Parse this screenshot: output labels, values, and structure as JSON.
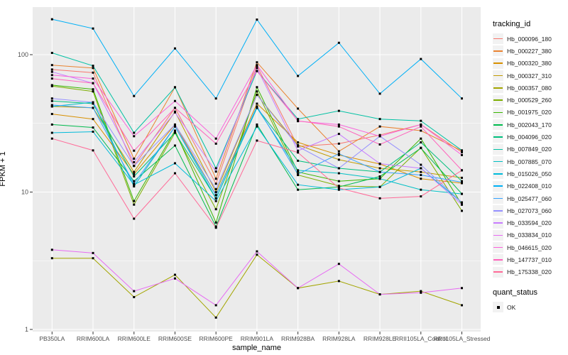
{
  "chart_data": {
    "type": "line",
    "title": "",
    "xlabel": "sample_name",
    "ylabel": "FPKM + 1",
    "y_scale": "log10",
    "y_ticks": [
      100,
      10,
      1
    ],
    "y_minor_gridlines": [
      31.6228,
      3.16228
    ],
    "ylim": [
      1,
      222
    ],
    "grid": true,
    "legend_position": "right",
    "point_marker": "black-filled-square",
    "panel_background": "#EBEBEB",
    "gridline_color": "#FFFFFF",
    "tick_label_color": "#4D4D4D",
    "categories": [
      "PB350LA",
      "RRIM600LA",
      "RRIM600LE",
      "RRIM600SE",
      "RRIM600PE",
      "RRIM901LA",
      "RRIM928BA",
      "RRIM928LA",
      "RRIM928LE",
      "RRII105LA_Control",
      "RRII105LA_Stressed"
    ],
    "series": [
      {
        "name": "Hb_000096_180",
        "color": "#F8766D",
        "values": [
          78,
          74,
          15.5,
          41,
          11.5,
          83,
          21.5,
          22.5,
          26,
          31,
          19.5
        ]
      },
      {
        "name": "Hb_000227_380",
        "color": "#EA8331",
        "values": [
          84,
          80,
          17.5,
          58,
          12.5,
          88,
          40.5,
          19.8,
          30,
          28,
          20
        ]
      },
      {
        "name": "Hb_000320_380",
        "color": "#D89000",
        "values": [
          37,
          34,
          13.5,
          31,
          9.5,
          44,
          23,
          18.6,
          16,
          12.5,
          11.6
        ]
      },
      {
        "name": "Hb_000327_310",
        "color": "#C09B00",
        "values": [
          42,
          41,
          14,
          38.5,
          10,
          51,
          22,
          17.2,
          14.9,
          14,
          12.7
        ]
      },
      {
        "name": "Hb_000357_080",
        "color": "#A3A500",
        "values": [
          3.3,
          3.3,
          1.72,
          2.5,
          1.22,
          3.5,
          2.0,
          2.25,
          1.8,
          1.9,
          1.5
        ]
      },
      {
        "name": "Hb_000529_260",
        "color": "#7CAE00",
        "values": [
          59,
          54,
          8.1,
          27,
          7.5,
          54,
          13.3,
          11.1,
          10.9,
          21,
          7.3
        ]
      },
      {
        "name": "Hb_001975_020",
        "color": "#39B600",
        "values": [
          60,
          56,
          8.6,
          28,
          6.0,
          58,
          14,
          12.0,
          12.5,
          24.5,
          8.1
        ]
      },
      {
        "name": "Hb_002043_170",
        "color": "#00BB4E",
        "values": [
          31,
          29.5,
          12,
          21.8,
          5.6,
          31,
          10.4,
          10.9,
          13,
          20.9,
          9.7
        ]
      },
      {
        "name": "Hb_004096_020",
        "color": "#00BF7D",
        "values": [
          46,
          44,
          13,
          27,
          9.0,
          41,
          16.9,
          14.9,
          14,
          23,
          12
        ]
      },
      {
        "name": "Hb_007849_020",
        "color": "#00C1A3",
        "values": [
          103,
          83,
          27,
          57.8,
          14.9,
          76,
          34,
          39,
          34,
          33,
          20.1
        ]
      },
      {
        "name": "Hb_007885_070",
        "color": "#00BFC4",
        "values": [
          42,
          45,
          11,
          30,
          9.0,
          41,
          14.4,
          13.7,
          12.5,
          10.4,
          9.7
        ]
      },
      {
        "name": "Hb_015026_050",
        "color": "#00BBDA",
        "values": [
          27,
          27.5,
          11.3,
          16.2,
          8.6,
          30,
          11.3,
          10.4,
          10.9,
          14.9,
          8.4
        ]
      },
      {
        "name": "Hb_022408_010",
        "color": "#00B0F6",
        "values": [
          181,
          155,
          50,
          111,
          48,
          180,
          70,
          122,
          52,
          93,
          48
        ]
      },
      {
        "name": "Hb_025477_060",
        "color": "#35A2FF",
        "values": [
          43,
          41,
          11.5,
          30,
          9.5,
          42,
          13.5,
          19,
          14,
          13.3,
          11.8
        ]
      },
      {
        "name": "Hb_027073_060",
        "color": "#9590FF",
        "values": [
          48,
          45,
          15.5,
          31,
          10.5,
          51,
          21.5,
          14.9,
          25.5,
          15.8,
          8.4
        ]
      },
      {
        "name": "Hb_033594_020",
        "color": "#C77CFF",
        "values": [
          75,
          62,
          16.5,
          38,
          14.1,
          80,
          20,
          26.5,
          16.1,
          14.9,
          8.1
        ]
      },
      {
        "name": "Hb_033834_010",
        "color": "#E76BF3",
        "values": [
          3.8,
          3.6,
          1.9,
          2.35,
          1.5,
          3.7,
          2.0,
          3.0,
          1.8,
          1.85,
          2.0
        ]
      },
      {
        "name": "Hb_046615_020",
        "color": "#FA62DB",
        "values": [
          71,
          67,
          25.5,
          46,
          24.5,
          84,
          32.8,
          31,
          25.5,
          31,
          18.6
        ]
      },
      {
        "name": "Hb_147737_010",
        "color": "#FF62BC",
        "values": [
          67,
          62,
          20,
          41,
          22.5,
          76,
          33,
          30,
          22.2,
          30,
          14.4
        ]
      },
      {
        "name": "Hb_175338_020",
        "color": "#FF6A98",
        "values": [
          24.5,
          20.1,
          6.4,
          13.7,
          5.5,
          23.7,
          19.4,
          10.7,
          9.0,
          9.3,
          14.4
        ]
      }
    ],
    "legend": {
      "tracking_id_title": "tracking_id",
      "quant_status_title": "quant_status",
      "quant_status_items": [
        "OK"
      ]
    }
  }
}
